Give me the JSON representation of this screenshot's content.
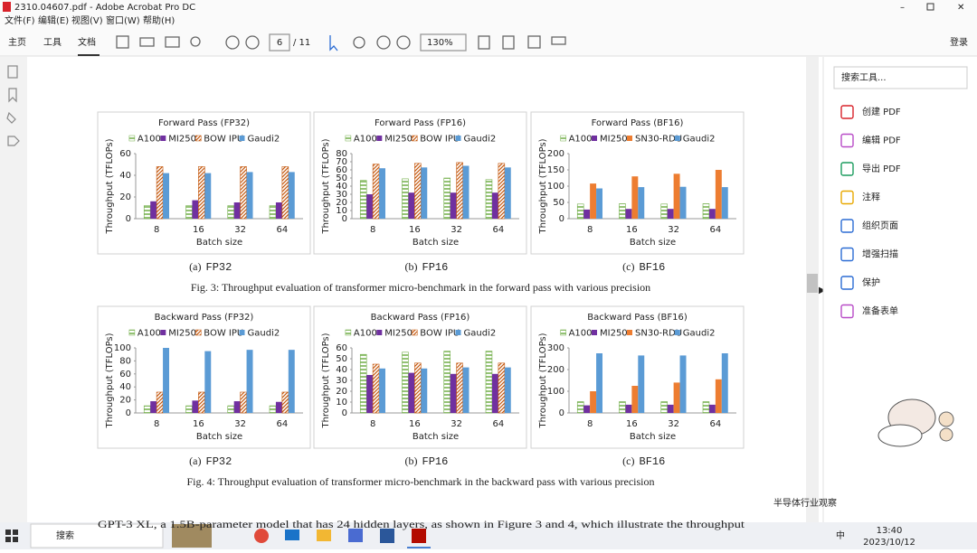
{
  "window": {
    "title": "2310.04607.pdf - Adobe Acrobat Pro DC"
  },
  "menu": [
    "文件(F)",
    "编辑(E)",
    "视图(V)",
    "窗口(W)",
    "帮助(H)"
  ],
  "toolbar": {
    "tabs": [
      "主页",
      "工具",
      "文档"
    ],
    "page": "6",
    "pages": "/ 11",
    "zoom": "130%",
    "login": "登录"
  },
  "tools_panel": {
    "search": "搜索工具...",
    "items": [
      "创建 PDF",
      "编辑 PDF",
      "导出 PDF",
      "注释",
      "组织页面",
      "增强扫描",
      "保护",
      "准备表单"
    ]
  },
  "figures": [
    {
      "caption": "Fig. 3: Throughput evaluation of transformer micro-benchmark in the forward pass with various precision",
      "subfigures": [
        {
          "label": "(a)",
          "name": "FP32",
          "chart": {
            "type": "bar",
            "title": "Forward Pass (FP32)",
            "categories": [
              "8",
              "16",
              "32",
              "64"
            ],
            "xlabel": "Batch size",
            "ylabel": "Throughput (TFLOPs)",
            "ylim": [
              0,
              60
            ],
            "yticks": [
              0,
              20,
              40,
              60
            ],
            "series": [
              {
                "name": "A100",
                "color": "#70ad47",
                "hatch": "horizontal",
                "values": [
                  12,
                  12,
                  12,
                  12
                ]
              },
              {
                "name": "MI250",
                "color": "#7030a0",
                "values": [
                  16,
                  17,
                  15,
                  15
                ]
              },
              {
                "name": "BOW IPU",
                "color": "#c55a11",
                "hatch": "diagonal",
                "values": [
                  48,
                  48,
                  48,
                  48
                ]
              },
              {
                "name": "Gaudi2",
                "color": "#5b9bd5",
                "values": [
                  42,
                  42,
                  43,
                  43
                ]
              }
            ]
          }
        },
        {
          "label": "(b)",
          "name": "FP16",
          "chart": {
            "type": "bar",
            "title": "Forward Pass (FP16)",
            "categories": [
              "8",
              "16",
              "32",
              "64"
            ],
            "xlabel": "Batch size",
            "ylabel": "Throughput (TFLOPs)",
            "ylim": [
              0,
              80
            ],
            "yticks": [
              0,
              10,
              20,
              30,
              40,
              50,
              60,
              70,
              80
            ],
            "series": [
              {
                "name": "A100",
                "color": "#70ad47",
                "hatch": "horizontal",
                "values": [
                  47,
                  49,
                  50,
                  48
                ]
              },
              {
                "name": "MI250",
                "color": "#7030a0",
                "values": [
                  30,
                  32,
                  32,
                  32
                ]
              },
              {
                "name": "BOW IPU",
                "color": "#c55a11",
                "hatch": "diagonal",
                "values": [
                  67,
                  68,
                  69,
                  68
                ]
              },
              {
                "name": "Gaudi2",
                "color": "#5b9bd5",
                "values": [
                  62,
                  63,
                  65,
                  63
                ]
              }
            ]
          }
        },
        {
          "label": "(c)",
          "name": "BF16",
          "chart": {
            "type": "bar",
            "title": "Forward Pass (BF16)",
            "categories": [
              "8",
              "16",
              "32",
              "64"
            ],
            "xlabel": "Batch size",
            "ylabel": "Throughput (TFLOPs)",
            "ylim": [
              0,
              200
            ],
            "yticks": [
              0,
              50,
              100,
              150,
              200
            ],
            "series": [
              {
                "name": "A100",
                "color": "#70ad47",
                "hatch": "horizontal",
                "values": [
                  45,
                  46,
                  45,
                  46
                ]
              },
              {
                "name": "MI250",
                "color": "#7030a0",
                "values": [
                  28,
                  30,
                  30,
                  30
                ]
              },
              {
                "name": "SN30-RDU",
                "color": "#ed7d31",
                "values": [
                  108,
                  130,
                  138,
                  150
                ]
              },
              {
                "name": "Gaudi2",
                "color": "#5b9bd5",
                "values": [
                  93,
                  97,
                  98,
                  97
                ]
              }
            ]
          }
        }
      ]
    },
    {
      "caption": "Fig. 4: Throughput evaluation of transformer micro-benchmark in the backward pass with various precision",
      "subfigures": [
        {
          "label": "(a)",
          "name": "FP32",
          "chart": {
            "type": "bar",
            "title": "Backward Pass (FP32)",
            "categories": [
              "8",
              "16",
              "32",
              "64"
            ],
            "xlabel": "Batch size",
            "ylabel": "Throughput (TFLOPs)",
            "ylim": [
              0,
              100
            ],
            "yticks": [
              0,
              20,
              40,
              60,
              80,
              100
            ],
            "series": [
              {
                "name": "A100",
                "color": "#70ad47",
                "hatch": "horizontal",
                "values": [
                  11,
                  11,
                  11,
                  11
                ]
              },
              {
                "name": "MI250",
                "color": "#7030a0",
                "values": [
                  18,
                  19,
                  18,
                  17
                ]
              },
              {
                "name": "BOW IPU",
                "color": "#c55a11",
                "hatch": "diagonal",
                "values": [
                  32,
                  32,
                  32,
                  32
                ]
              },
              {
                "name": "Gaudi2",
                "color": "#5b9bd5",
                "values": [
                  100,
                  95,
                  97,
                  97
                ]
              }
            ]
          }
        },
        {
          "label": "(b)",
          "name": "FP16",
          "chart": {
            "type": "bar",
            "title": "Backward Pass (FP16)",
            "categories": [
              "8",
              "16",
              "32",
              "64"
            ],
            "xlabel": "Batch size",
            "ylabel": "Throughput (TFLOPs)",
            "ylim": [
              0,
              60
            ],
            "yticks": [
              0,
              10,
              20,
              30,
              40,
              50,
              60
            ],
            "series": [
              {
                "name": "A100",
                "color": "#70ad47",
                "hatch": "horizontal",
                "values": [
                  54,
                  56,
                  57,
                  57
                ]
              },
              {
                "name": "MI250",
                "color": "#7030a0",
                "values": [
                  35,
                  37,
                  36,
                  36
                ]
              },
              {
                "name": "BOW IPU",
                "color": "#c55a11",
                "hatch": "diagonal",
                "values": [
                  45,
                  46,
                  46,
                  46
                ]
              },
              {
                "name": "Gaudi2",
                "color": "#5b9bd5",
                "values": [
                  41,
                  41,
                  42,
                  42
                ]
              }
            ]
          }
        },
        {
          "label": "(c)",
          "name": "BF16",
          "chart": {
            "type": "bar",
            "title": "Backward Pass (BF16)",
            "categories": [
              "8",
              "16",
              "32",
              "64"
            ],
            "xlabel": "Batch size",
            "ylabel": "Throughput (TFLOPs)",
            "ylim": [
              0,
              300
            ],
            "yticks": [
              0,
              100,
              200,
              300
            ],
            "series": [
              {
                "name": "A100",
                "color": "#70ad47",
                "hatch": "horizontal",
                "values": [
                  52,
                  52,
                  52,
                  52
                ]
              },
              {
                "name": "MI250",
                "color": "#7030a0",
                "values": [
                  35,
                  38,
                  38,
                  38
                ]
              },
              {
                "name": "SN30-RDU",
                "color": "#ed7d31",
                "values": [
                  100,
                  125,
                  140,
                  155
                ]
              },
              {
                "name": "Gaudi2",
                "color": "#5b9bd5",
                "values": [
                  275,
                  265,
                  265,
                  275
                ]
              }
            ]
          }
        }
      ]
    }
  ],
  "body_text": "GPT-3 XL, a 1.5B-parameter model that has 24 hidden layers, as shown in Figure 3 and 4, which illustrate the throughput",
  "watermark": "半导体行业观察",
  "taskbar": {
    "search": "搜索",
    "ime": "中",
    "time": "13:40",
    "date": "2023/10/12"
  }
}
